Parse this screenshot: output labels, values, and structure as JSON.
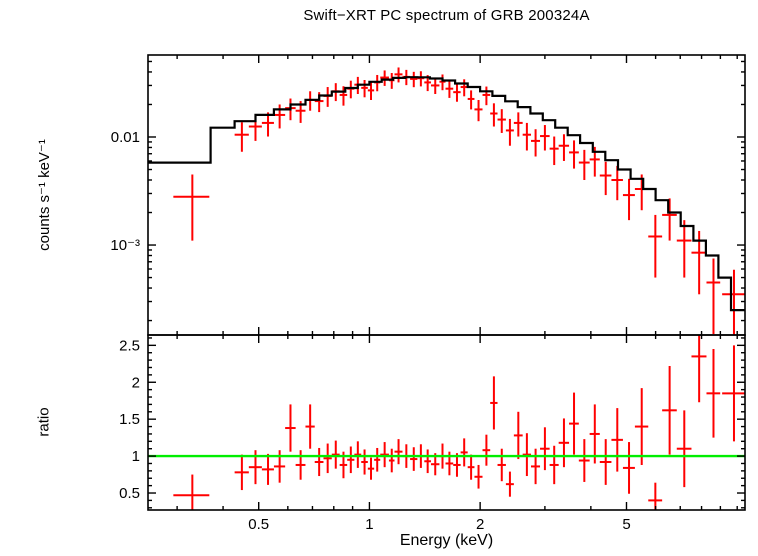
{
  "chart_data": {
    "type": "scatter",
    "title": "Swift−XRT PC spectrum of GRB 200324A",
    "xlabel": "Energy (keV)",
    "x_scale": "log",
    "x_range": [
      0.25,
      10.5
    ],
    "x_ticks": [
      {
        "value": 0.5,
        "label": "0.5"
      },
      {
        "value": 1,
        "label": "1"
      },
      {
        "value": 2,
        "label": "2"
      },
      {
        "value": 5,
        "label": "5"
      }
    ],
    "colors": {
      "data": "#ff0000",
      "model": "#000000",
      "reference": "#00ee00",
      "axis": "#000000"
    },
    "panels": [
      {
        "name": "spectrum",
        "ylabel": "counts s⁻¹ keV⁻¹",
        "y_scale": "log",
        "y_range": [
          0.000147,
          0.0574
        ],
        "y_ticks": [
          {
            "value": 0.01,
            "label": "0.01"
          },
          {
            "value": 0.001,
            "label": "10⁻³"
          }
        ],
        "model": {
          "edges": [
            0.25,
            0.37,
            0.43,
            0.49,
            0.55,
            0.61,
            0.67,
            0.73,
            0.79,
            0.86,
            0.93,
            1.0,
            1.08,
            1.16,
            1.25,
            1.35,
            1.46,
            1.58,
            1.71,
            1.85,
            2.0,
            2.16,
            2.34,
            2.53,
            2.74,
            2.96,
            3.2,
            3.46,
            3.74,
            4.05,
            4.38,
            4.74,
            5.13,
            5.55,
            6.0,
            6.49,
            7.02,
            7.6,
            8.22,
            8.89,
            9.62,
            10.5
          ],
          "values": [
            0.0058,
            0.0122,
            0.014,
            0.016,
            0.018,
            0.02,
            0.0221,
            0.0242,
            0.0263,
            0.0284,
            0.0305,
            0.0324,
            0.034,
            0.0352,
            0.0358,
            0.0357,
            0.0348,
            0.0333,
            0.0313,
            0.029,
            0.0265,
            0.024,
            0.0214,
            0.0189,
            0.0165,
            0.0143,
            0.0122,
            0.0104,
            0.0088,
            0.0073,
            0.0061,
            0.005,
            0.0041,
            0.0033,
            0.0026,
            0.002,
            0.0015,
            0.0011,
            0.0008,
            0.0005,
            0.00025
          ]
        },
        "points": [
          [
            0.33,
            0.037,
            0.0028,
            0.0017
          ],
          [
            0.45,
            0.02,
            0.0105,
            0.0032
          ],
          [
            0.49,
            0.02,
            0.0125,
            0.0033
          ],
          [
            0.53,
            0.02,
            0.0135,
            0.0034
          ],
          [
            0.57,
            0.02,
            0.016,
            0.004
          ],
          [
            0.61,
            0.02,
            0.0185,
            0.0042
          ],
          [
            0.65,
            0.02,
            0.0175,
            0.004
          ],
          [
            0.69,
            0.02,
            0.022,
            0.0045
          ],
          [
            0.73,
            0.02,
            0.0215,
            0.0045
          ],
          [
            0.77,
            0.02,
            0.024,
            0.005
          ],
          [
            0.81,
            0.02,
            0.0265,
            0.005
          ],
          [
            0.85,
            0.02,
            0.0245,
            0.005
          ],
          [
            0.89,
            0.02,
            0.028,
            0.0052
          ],
          [
            0.93,
            0.02,
            0.0305,
            0.0055
          ],
          [
            0.97,
            0.02,
            0.0285,
            0.0052
          ],
          [
            1.01,
            0.02,
            0.027,
            0.005
          ],
          [
            1.05,
            0.02,
            0.032,
            0.0055
          ],
          [
            1.1,
            0.03,
            0.0355,
            0.0058
          ],
          [
            1.15,
            0.02,
            0.0335,
            0.0056
          ],
          [
            1.2,
            0.03,
            0.038,
            0.006
          ],
          [
            1.26,
            0.03,
            0.036,
            0.0058
          ],
          [
            1.32,
            0.03,
            0.0345,
            0.0056
          ],
          [
            1.38,
            0.03,
            0.035,
            0.0056
          ],
          [
            1.44,
            0.03,
            0.032,
            0.0054
          ],
          [
            1.51,
            0.04,
            0.03,
            0.005
          ],
          [
            1.58,
            0.03,
            0.0325,
            0.0054
          ],
          [
            1.65,
            0.04,
            0.028,
            0.005
          ],
          [
            1.73,
            0.04,
            0.026,
            0.0048
          ],
          [
            1.81,
            0.04,
            0.029,
            0.0052
          ],
          [
            1.89,
            0.04,
            0.0225,
            0.0045
          ],
          [
            1.98,
            0.05,
            0.018,
            0.004
          ],
          [
            2.08,
            0.05,
            0.0245,
            0.0048
          ],
          [
            2.18,
            0.05,
            0.0165,
            0.004
          ],
          [
            2.29,
            0.06,
            0.0145,
            0.0036
          ],
          [
            2.41,
            0.06,
            0.0115,
            0.0032
          ],
          [
            2.54,
            0.07,
            0.0135,
            0.0034
          ],
          [
            2.68,
            0.07,
            0.0105,
            0.003
          ],
          [
            2.83,
            0.08,
            0.0092,
            0.0026
          ],
          [
            3.0,
            0.09,
            0.0102,
            0.0027
          ],
          [
            3.18,
            0.09,
            0.0078,
            0.0023
          ],
          [
            3.38,
            0.11,
            0.0083,
            0.0023
          ],
          [
            3.6,
            0.11,
            0.0072,
            0.0021
          ],
          [
            3.84,
            0.13,
            0.0058,
            0.0018
          ],
          [
            4.1,
            0.13,
            0.0062,
            0.0019
          ],
          [
            4.39,
            0.16,
            0.0044,
            0.0015
          ],
          [
            4.72,
            0.17,
            0.004,
            0.0014
          ],
          [
            5.08,
            0.19,
            0.0029,
            0.0012
          ],
          [
            5.5,
            0.23,
            0.0033,
            0.0012
          ],
          [
            5.99,
            0.26,
            0.0012,
            0.0007
          ],
          [
            6.55,
            0.3,
            0.0019,
            0.0008
          ],
          [
            7.18,
            0.33,
            0.0011,
            0.0006
          ],
          [
            7.88,
            0.37,
            0.00085,
            0.0005
          ],
          [
            8.62,
            0.37,
            0.00045,
            0.0003
          ],
          [
            9.8,
            0.7,
            0.00035,
            0.00024
          ]
        ]
      },
      {
        "name": "ratio",
        "ylabel": "ratio",
        "y_scale": "linear",
        "y_range": [
          0.27,
          2.64
        ],
        "y_ticks": [
          {
            "value": 0.5,
            "label": "0.5"
          },
          {
            "value": 1,
            "label": "1"
          },
          {
            "value": 1.5,
            "label": "1.5"
          },
          {
            "value": 2,
            "label": "2"
          },
          {
            "value": 2.5,
            "label": "2.5"
          }
        ],
        "reference_line": 1,
        "points": [
          [
            0.33,
            0.037,
            0.47,
            0.28
          ],
          [
            0.45,
            0.02,
            0.78,
            0.24
          ],
          [
            0.49,
            0.02,
            0.85,
            0.23
          ],
          [
            0.53,
            0.02,
            0.82,
            0.21
          ],
          [
            0.57,
            0.02,
            0.86,
            0.22
          ],
          [
            0.61,
            0.02,
            1.38,
            0.32
          ],
          [
            0.65,
            0.02,
            0.88,
            0.2
          ],
          [
            0.69,
            0.02,
            1.4,
            0.3
          ],
          [
            0.73,
            0.02,
            0.92,
            0.19
          ],
          [
            0.77,
            0.02,
            0.97,
            0.2
          ],
          [
            0.81,
            0.02,
            1.02,
            0.19
          ],
          [
            0.85,
            0.02,
            0.88,
            0.18
          ],
          [
            0.89,
            0.02,
            0.95,
            0.18
          ],
          [
            0.93,
            0.02,
            1.02,
            0.18
          ],
          [
            0.97,
            0.02,
            0.92,
            0.17
          ],
          [
            1.01,
            0.02,
            0.83,
            0.15
          ],
          [
            1.05,
            0.02,
            0.95,
            0.16
          ],
          [
            1.1,
            0.03,
            1.02,
            0.17
          ],
          [
            1.15,
            0.02,
            0.94,
            0.16
          ],
          [
            1.2,
            0.03,
            1.06,
            0.17
          ],
          [
            1.26,
            0.03,
            1.0,
            0.16
          ],
          [
            1.32,
            0.03,
            0.96,
            0.16
          ],
          [
            1.38,
            0.03,
            1.0,
            0.16
          ],
          [
            1.44,
            0.03,
            0.93,
            0.16
          ],
          [
            1.51,
            0.04,
            0.89,
            0.15
          ],
          [
            1.58,
            0.03,
            1.0,
            0.17
          ],
          [
            1.65,
            0.04,
            0.9,
            0.16
          ],
          [
            1.73,
            0.04,
            0.88,
            0.16
          ],
          [
            1.81,
            0.04,
            1.05,
            0.19
          ],
          [
            1.89,
            0.04,
            0.85,
            0.17
          ],
          [
            1.98,
            0.05,
            0.72,
            0.16
          ],
          [
            2.08,
            0.05,
            1.08,
            0.21
          ],
          [
            2.18,
            0.05,
            1.72,
            0.36
          ],
          [
            2.29,
            0.06,
            0.88,
            0.22
          ],
          [
            2.41,
            0.06,
            0.62,
            0.17
          ],
          [
            2.54,
            0.07,
            1.28,
            0.32
          ],
          [
            2.68,
            0.07,
            1.02,
            0.29
          ],
          [
            2.83,
            0.08,
            0.86,
            0.24
          ],
          [
            3.0,
            0.09,
            1.1,
            0.29
          ],
          [
            3.18,
            0.09,
            0.88,
            0.26
          ],
          [
            3.38,
            0.11,
            1.18,
            0.33
          ],
          [
            3.6,
            0.11,
            1.44,
            0.42
          ],
          [
            3.84,
            0.13,
            0.94,
            0.29
          ],
          [
            4.1,
            0.13,
            1.3,
            0.4
          ],
          [
            4.39,
            0.16,
            0.92,
            0.31
          ],
          [
            4.72,
            0.17,
            1.22,
            0.43
          ],
          [
            5.08,
            0.19,
            0.84,
            0.35
          ],
          [
            5.5,
            0.23,
            1.4,
            0.52
          ],
          [
            5.99,
            0.26,
            0.4,
            0.24
          ],
          [
            6.55,
            0.3,
            1.62,
            0.6
          ],
          [
            7.18,
            0.33,
            1.1,
            0.52
          ],
          [
            7.88,
            0.37,
            2.35,
            0.62
          ],
          [
            8.62,
            0.37,
            1.85,
            0.6
          ],
          [
            9.8,
            0.7,
            1.85,
            0.65
          ]
        ]
      }
    ]
  }
}
